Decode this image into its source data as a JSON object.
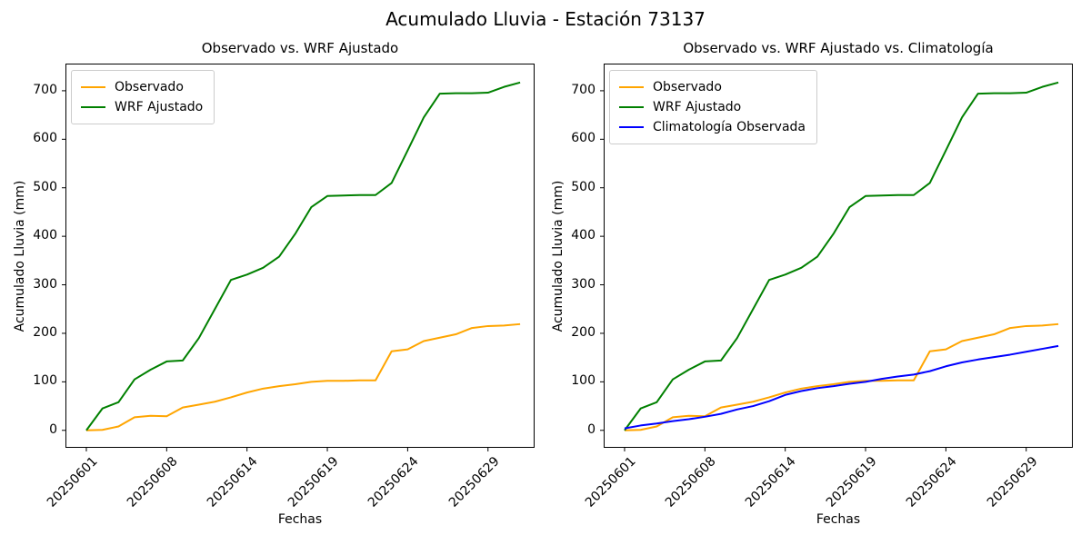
{
  "figure": {
    "title": "Acumulado Lluvia - Estación 73137",
    "background": "#ffffff",
    "text_color": "#000000"
  },
  "chart_data": [
    {
      "type": "line",
      "title": "Observado vs. WRF Ajustado",
      "xlabel": "Fechas",
      "ylabel": "Acumulado Lluvia (mm)",
      "x_tick_labels": [
        "20250601",
        "20250608",
        "20250614",
        "20250619",
        "20250624",
        "20250629"
      ],
      "x_tick_indices": [
        0,
        5,
        10,
        15,
        20,
        25
      ],
      "y_ticks": [
        0,
        100,
        200,
        300,
        400,
        500,
        600,
        700
      ],
      "xlim": [
        -1.3,
        27.9
      ],
      "ylim": [
        -36,
        756
      ],
      "n_points": 28,
      "grid": false,
      "legend_position": "upper left",
      "axis_color": "#000000",
      "series": [
        {
          "name": "Observado",
          "color": "#FFA500",
          "values": [
            0,
            1,
            8,
            27,
            30,
            29,
            47,
            53,
            59,
            68,
            78,
            86,
            91,
            95,
            100,
            102,
            102,
            103,
            103,
            163,
            167,
            184,
            191,
            198,
            211,
            215,
            216,
            219
          ]
        },
        {
          "name": "WRF Ajustado",
          "color": "#008000",
          "values": [
            0,
            45,
            58,
            105,
            125,
            142,
            144,
            190,
            250,
            310,
            321,
            335,
            358,
            405,
            460,
            483,
            484,
            485,
            485,
            510,
            577,
            645,
            694,
            695,
            695,
            696,
            708,
            717
          ]
        }
      ]
    },
    {
      "type": "line",
      "title": "Observado vs. WRF Ajustado vs. Climatología",
      "xlabel": "Fechas",
      "ylabel": "Acumulado Lluvia (mm)",
      "x_tick_labels": [
        "20250601",
        "20250608",
        "20250614",
        "20250619",
        "20250624",
        "20250629"
      ],
      "x_tick_indices": [
        0,
        5,
        10,
        15,
        20,
        25
      ],
      "y_ticks": [
        0,
        100,
        200,
        300,
        400,
        500,
        600,
        700
      ],
      "xlim": [
        -1.3,
        27.9
      ],
      "ylim": [
        -36,
        756
      ],
      "n_points": 28,
      "grid": false,
      "legend_position": "upper left",
      "axis_color": "#000000",
      "series": [
        {
          "name": "Observado",
          "color": "#FFA500",
          "values": [
            0,
            1,
            8,
            27,
            30,
            29,
            47,
            53,
            59,
            68,
            78,
            86,
            91,
            95,
            100,
            102,
            102,
            103,
            103,
            163,
            167,
            184,
            191,
            198,
            211,
            215,
            216,
            219
          ]
        },
        {
          "name": "WRF Ajustado",
          "color": "#008000",
          "values": [
            0,
            45,
            58,
            105,
            125,
            142,
            144,
            190,
            250,
            310,
            321,
            335,
            358,
            405,
            460,
            483,
            484,
            485,
            485,
            510,
            577,
            645,
            694,
            695,
            695,
            696,
            708,
            717
          ]
        },
        {
          "name": "Climatología Observada",
          "color": "#0000FF",
          "values": [
            4,
            10,
            14,
            19,
            23,
            28,
            34,
            43,
            50,
            60,
            73,
            81,
            87,
            91,
            96,
            100,
            106,
            111,
            115,
            122,
            132,
            140,
            146,
            151,
            156,
            162,
            168,
            174
          ]
        }
      ]
    }
  ]
}
